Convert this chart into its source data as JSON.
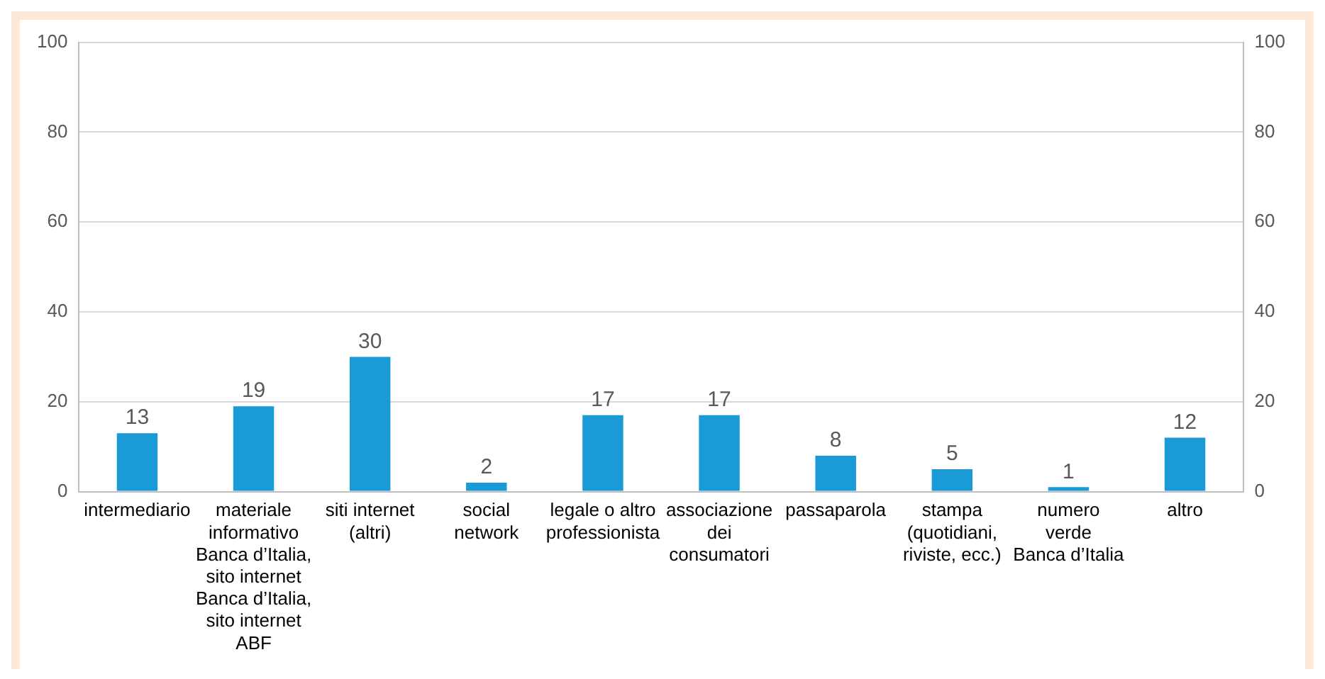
{
  "chart_data": {
    "type": "bar",
    "categories": [
      "intermediario",
      "materiale\ninformativo\nBanca d’Italia,\nsito internet\nBanca d’Italia,\nsito internet\nABF",
      "siti internet\n(altri)",
      "social\nnetwork",
      "legale o altro\nprofessionista",
      "associazione\ndei\nconsumatori",
      "passaparola",
      "stampa\n(quotidiani,\nriviste, ecc.)",
      "numero\nverde\nBanca d’Italia",
      "altro"
    ],
    "values": [
      13,
      19,
      30,
      2,
      17,
      17,
      8,
      5,
      1,
      12
    ],
    "color": "#1a9bd7",
    "ylim": [
      0,
      100
    ],
    "yticks": [
      0,
      20,
      40,
      60,
      80,
      100
    ],
    "y2lim": [
      0,
      100
    ],
    "y2ticks": [
      0,
      20,
      40,
      60,
      80,
      100
    ],
    "grid": "y",
    "data_labels": true,
    "legend": false
  }
}
